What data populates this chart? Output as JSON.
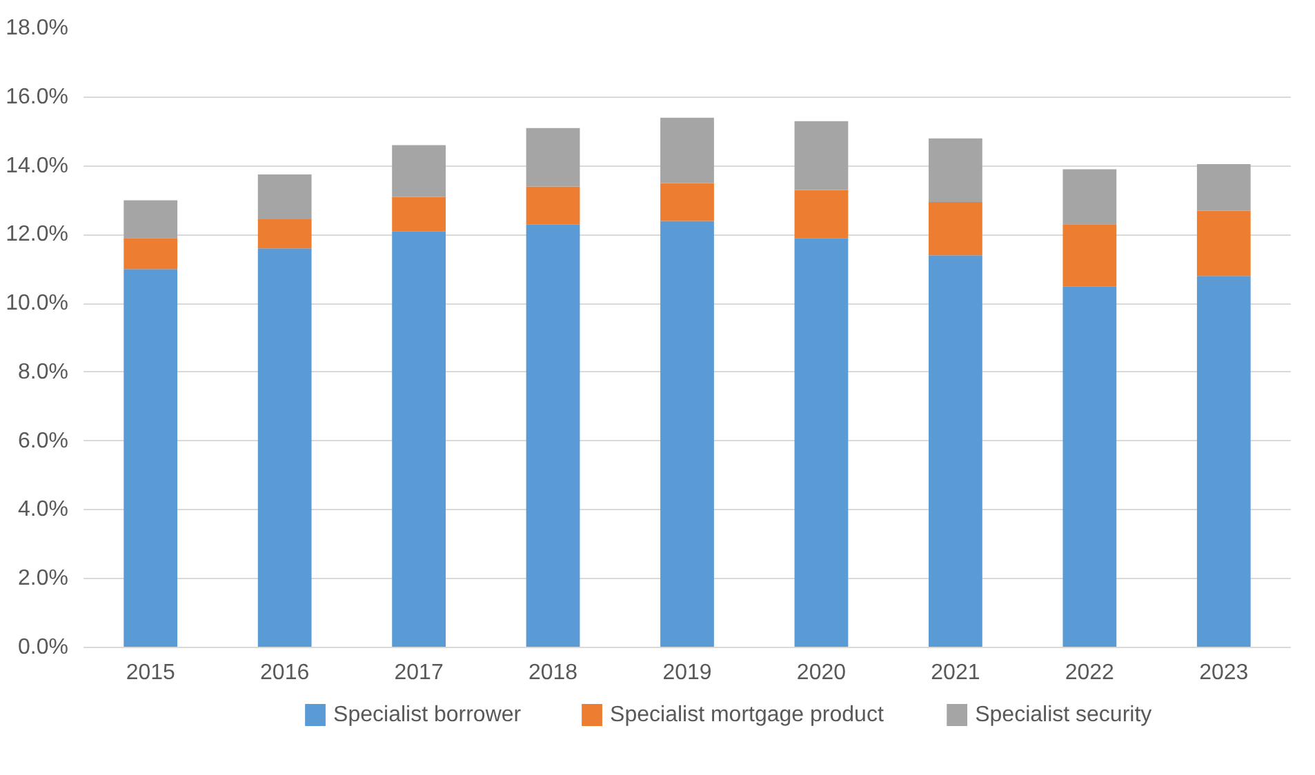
{
  "chart_data": {
    "type": "bar",
    "stacked": true,
    "categories": [
      "2015",
      "2016",
      "2017",
      "2018",
      "2019",
      "2020",
      "2021",
      "2022",
      "2023"
    ],
    "series": [
      {
        "name": "Specialist borrower",
        "color": "#5b9bd5",
        "values": [
          11.0,
          11.6,
          12.1,
          12.3,
          12.4,
          11.9,
          11.4,
          10.5,
          10.8
        ]
      },
      {
        "name": "Specialist mortgage product",
        "color": "#ed7d31",
        "values": [
          0.9,
          0.85,
          1.0,
          1.1,
          1.1,
          1.4,
          1.55,
          1.8,
          1.9
        ]
      },
      {
        "name": "Specialist security",
        "color": "#a5a5a5",
        "values": [
          1.1,
          1.3,
          1.5,
          1.7,
          1.9,
          2.0,
          1.85,
          1.6,
          1.35
        ]
      }
    ],
    "ylim": [
      0,
      18
    ],
    "yticks": [
      {
        "value": 0,
        "label": "0.0%"
      },
      {
        "value": 2,
        "label": "2.0%"
      },
      {
        "value": 4,
        "label": "4.0%"
      },
      {
        "value": 6,
        "label": "6.0%"
      },
      {
        "value": 8,
        "label": "8.0%"
      },
      {
        "value": 10,
        "label": "10.0%"
      },
      {
        "value": 12,
        "label": "12.0%"
      },
      {
        "value": 14,
        "label": "14.0%"
      },
      {
        "value": 16,
        "label": "16.0%"
      },
      {
        "value": 18,
        "label": "18.0%"
      }
    ],
    "grid": "y",
    "legend": "bottom"
  }
}
